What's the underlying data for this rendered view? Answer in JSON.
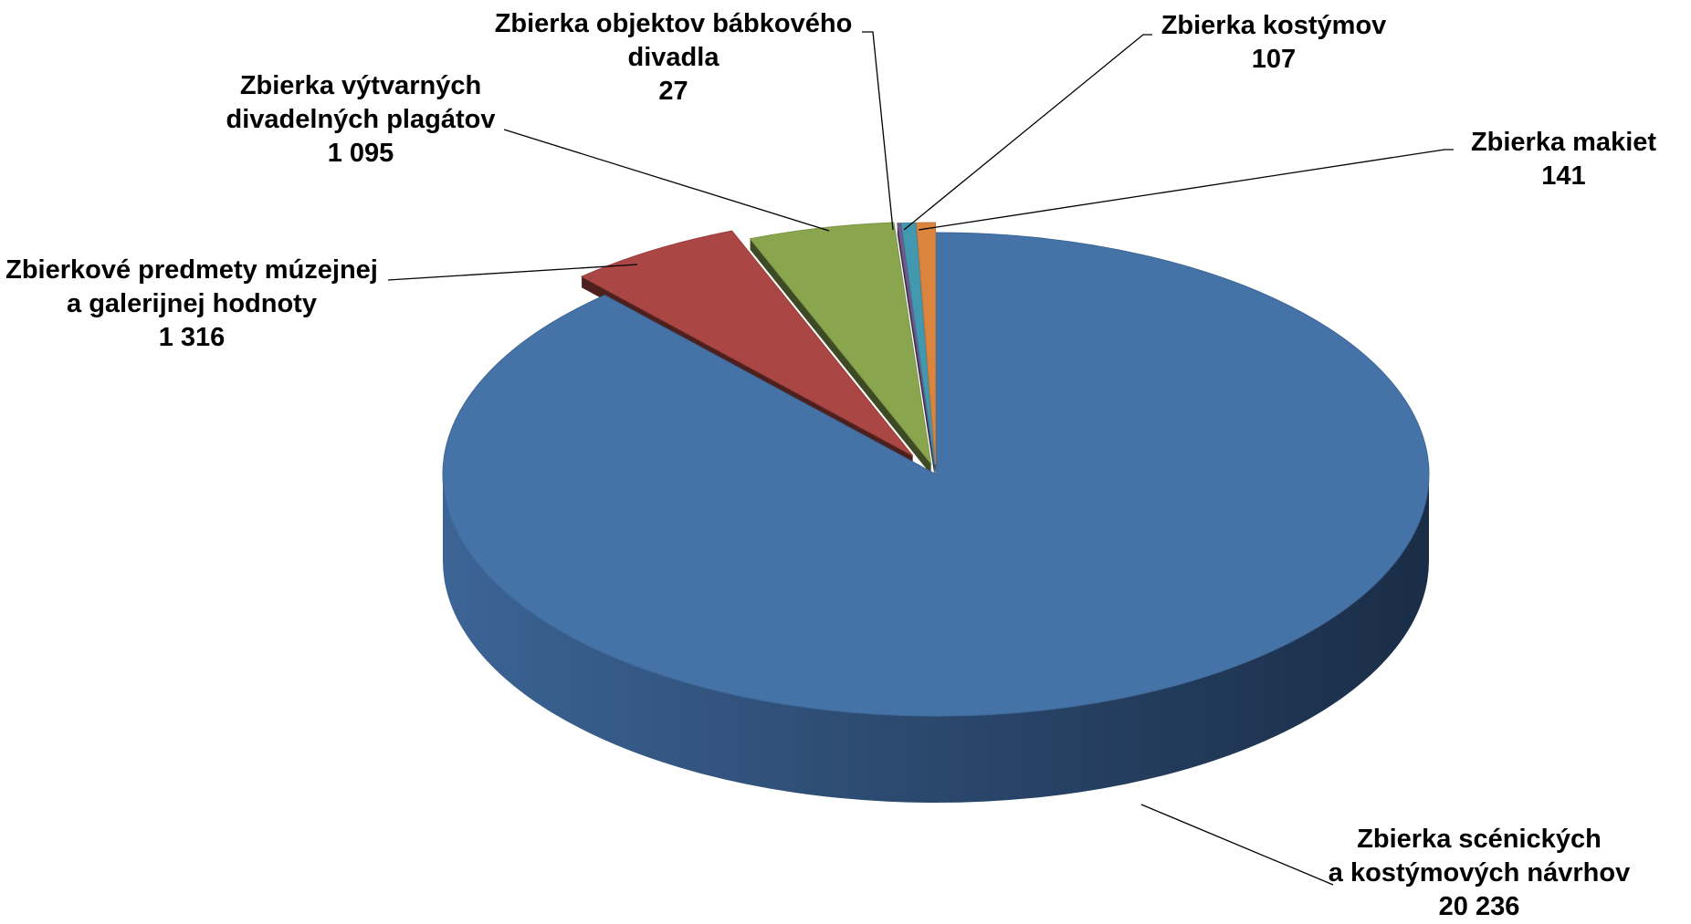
{
  "chart_data": {
    "type": "pie",
    "title": "",
    "style": "3d-exploded",
    "slices": [
      {
        "name_lines": [
          "Zbierka scénických",
          "a kostýmových návrhov"
        ],
        "value": 20236,
        "value_label": "20 236",
        "color": "#4572A7"
      },
      {
        "name_lines": [
          "Zbierkové predmety múzejnej",
          "a galerijnej hodnoty"
        ],
        "value": 1316,
        "value_label": "1 316",
        "color": "#AA4643"
      },
      {
        "name_lines": [
          "Zbierka výtvarných",
          "divadelných plagátov"
        ],
        "value": 1095,
        "value_label": "1 095",
        "color": "#89A54E"
      },
      {
        "name_lines": [
          "Zbierka objektov bábkového",
          "divadla"
        ],
        "value": 27,
        "value_label": "27",
        "color": "#71588F"
      },
      {
        "name_lines": [
          "Zbierka kostýmov"
        ],
        "value": 107,
        "value_label": "107",
        "color": "#4198AF"
      },
      {
        "name_lines": [
          "Zbierka makiet"
        ],
        "value": 141,
        "value_label": "141",
        "color": "#DB843D"
      }
    ]
  }
}
